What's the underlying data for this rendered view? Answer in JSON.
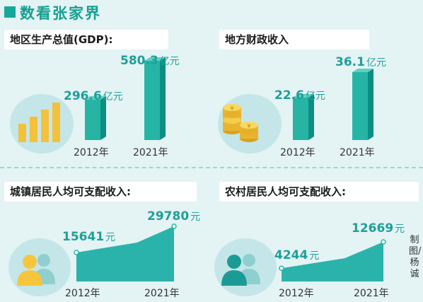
{
  "title": "数看张家界",
  "credit": "制图/杨诚",
  "panels": {
    "gdp": {
      "heading": "地区生产总值(GDP):",
      "unit": "亿元",
      "year1": "2012年",
      "year2": "2021年",
      "v1": "296.6",
      "v2": "580.3"
    },
    "fiscal": {
      "heading": "地方财政收入",
      "unit": "亿元",
      "year1": "2012年",
      "year2": "2021年",
      "v1": "22.6",
      "v2": "36.1"
    },
    "urban": {
      "heading": "城镇居民人均可支配收入:",
      "unit": "元",
      "year1": "2012年",
      "year2": "2021年",
      "v1": "15641",
      "v2": "29780"
    },
    "rural": {
      "heading": "农村居民人均可支配收入:",
      "unit": "元",
      "year1": "2012年",
      "year2": "2021年",
      "v1": "4244",
      "v2": "12669"
    }
  },
  "chart_data": [
    {
      "type": "bar",
      "title": "地区生产总值(GDP):",
      "categories": [
        "2012年",
        "2021年"
      ],
      "values": [
        296.6,
        580.3
      ],
      "unit": "亿元"
    },
    {
      "type": "bar",
      "title": "地方财政收入",
      "categories": [
        "2012年",
        "2021年"
      ],
      "values": [
        22.6,
        36.1
      ],
      "unit": "亿元"
    },
    {
      "type": "area",
      "title": "城镇居民人均可支配收入:",
      "x": [
        "2012年",
        "2021年"
      ],
      "values": [
        15641,
        29780
      ],
      "unit": "元"
    },
    {
      "type": "area",
      "title": "农村居民人均可支配收入:",
      "x": [
        "2012年",
        "2021年"
      ],
      "values": [
        4244,
        12669
      ],
      "unit": "元"
    }
  ],
  "colors": {
    "accent": "#15a79a",
    "bar_front": "#26b5a5",
    "bar_side": "#0d8e82",
    "area": "#2ab3ab",
    "yellow": "#f3c13a"
  }
}
